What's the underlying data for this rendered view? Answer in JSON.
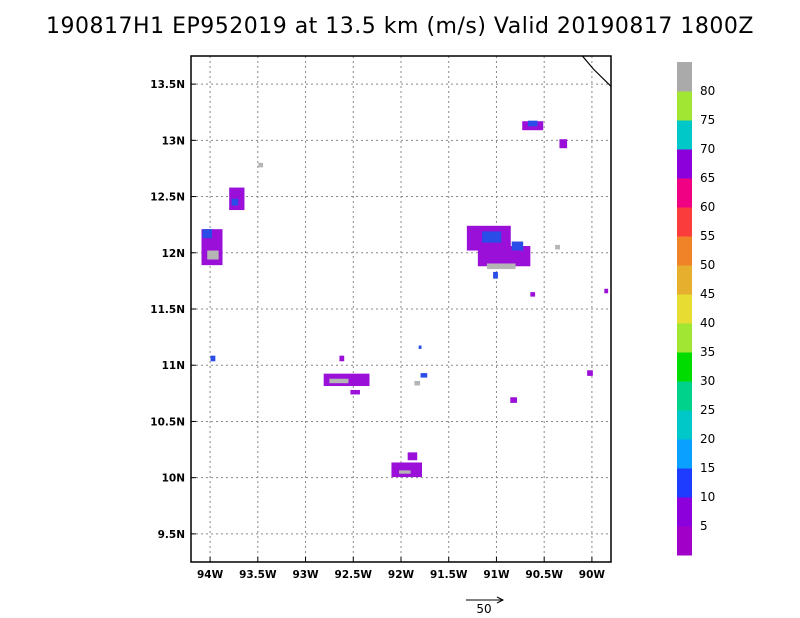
{
  "title": "190817H1 EP952019 at 13.5 km (m/s) Valid 20190817 1800Z",
  "map": {
    "lon_range": [
      -94.2,
      -89.8
    ],
    "lat_range": [
      9.25,
      13.75
    ],
    "lon_ticks": [
      {
        "value": -94.0,
        "label": "94W"
      },
      {
        "value": -93.5,
        "label": "93.5W"
      },
      {
        "value": -93.0,
        "label": "93W"
      },
      {
        "value": -92.5,
        "label": "92.5W"
      },
      {
        "value": -92.0,
        "label": "92W"
      },
      {
        "value": -91.5,
        "label": "91.5W"
      },
      {
        "value": -91.0,
        "label": "91W"
      },
      {
        "value": -90.5,
        "label": "90.5W"
      },
      {
        "value": -90.0,
        "label": "90W"
      }
    ],
    "lat_ticks": [
      {
        "value": 13.5,
        "label": "13.5N"
      },
      {
        "value": 13.0,
        "label": "13N"
      },
      {
        "value": 12.5,
        "label": "12.5N"
      },
      {
        "value": 12.0,
        "label": "12N"
      },
      {
        "value": 11.5,
        "label": "11.5N"
      },
      {
        "value": 11.0,
        "label": "11N"
      },
      {
        "value": 10.5,
        "label": "10.5N"
      },
      {
        "value": 10.0,
        "label": "10N"
      },
      {
        "value": 9.5,
        "label": "9.5N"
      }
    ],
    "grid": true,
    "coastline": [
      [
        -90.1,
        13.75
      ],
      [
        -89.98,
        13.63
      ],
      [
        -89.8,
        13.48
      ]
    ],
    "echo_cells": [
      {
        "lon": -93.98,
        "lat": 12.05,
        "w": 0.22,
        "h": 0.32,
        "color": "#9a10d8"
      },
      {
        "lon": -94.03,
        "lat": 12.17,
        "w": 0.1,
        "h": 0.08,
        "color": "#2a4de8"
      },
      {
        "lon": -93.97,
        "lat": 11.98,
        "w": 0.12,
        "h": 0.08,
        "color": "#b5b5b5"
      },
      {
        "lon": -93.72,
        "lat": 12.48,
        "w": 0.16,
        "h": 0.2,
        "color": "#9a10d8"
      },
      {
        "lon": -93.74,
        "lat": 12.45,
        "w": 0.07,
        "h": 0.06,
        "color": "#2a4de8"
      },
      {
        "lon": -93.47,
        "lat": 12.78,
        "w": 0.05,
        "h": 0.04,
        "color": "#b5b5b5"
      },
      {
        "lon": -93.97,
        "lat": 11.06,
        "w": 0.05,
        "h": 0.05,
        "color": "#2a4de8"
      },
      {
        "lon": -91.08,
        "lat": 12.13,
        "w": 0.46,
        "h": 0.22,
        "color": "#9a10d8"
      },
      {
        "lon": -90.92,
        "lat": 11.97,
        "w": 0.55,
        "h": 0.18,
        "color": "#9a10d8"
      },
      {
        "lon": -91.05,
        "lat": 12.14,
        "w": 0.2,
        "h": 0.1,
        "color": "#2a4de8"
      },
      {
        "lon": -90.78,
        "lat": 12.06,
        "w": 0.12,
        "h": 0.08,
        "color": "#2a4de8"
      },
      {
        "lon": -90.95,
        "lat": 11.88,
        "w": 0.3,
        "h": 0.05,
        "color": "#b5b5b5"
      },
      {
        "lon": -91.01,
        "lat": 11.8,
        "w": 0.05,
        "h": 0.06,
        "color": "#2a4de8"
      },
      {
        "lon": -90.62,
        "lat": 13.13,
        "w": 0.22,
        "h": 0.08,
        "color": "#9a10d8"
      },
      {
        "lon": -90.62,
        "lat": 13.15,
        "w": 0.1,
        "h": 0.05,
        "color": "#2a4de8"
      },
      {
        "lon": -90.3,
        "lat": 12.97,
        "w": 0.08,
        "h": 0.08,
        "color": "#9a10d8"
      },
      {
        "lon": -90.62,
        "lat": 11.63,
        "w": 0.05,
        "h": 0.04,
        "color": "#9a10d8"
      },
      {
        "lon": -90.36,
        "lat": 12.05,
        "w": 0.05,
        "h": 0.04,
        "color": "#b5b5b5"
      },
      {
        "lon": -89.85,
        "lat": 11.66,
        "w": 0.04,
        "h": 0.04,
        "color": "#9a10d8"
      },
      {
        "lon": -92.57,
        "lat": 10.87,
        "w": 0.48,
        "h": 0.11,
        "color": "#9a10d8"
      },
      {
        "lon": -92.62,
        "lat": 11.06,
        "w": 0.05,
        "h": 0.05,
        "color": "#9a10d8"
      },
      {
        "lon": -92.48,
        "lat": 10.76,
        "w": 0.1,
        "h": 0.04,
        "color": "#9a10d8"
      },
      {
        "lon": -92.65,
        "lat": 10.86,
        "w": 0.2,
        "h": 0.04,
        "color": "#b5b5b5"
      },
      {
        "lon": -91.76,
        "lat": 10.91,
        "w": 0.07,
        "h": 0.04,
        "color": "#2a4de8"
      },
      {
        "lon": -91.83,
        "lat": 10.84,
        "w": 0.06,
        "h": 0.04,
        "color": "#b5b5b5"
      },
      {
        "lon": -91.8,
        "lat": 11.16,
        "w": 0.03,
        "h": 0.03,
        "color": "#2a4de8"
      },
      {
        "lon": -90.82,
        "lat": 10.69,
        "w": 0.07,
        "h": 0.05,
        "color": "#9a10d8"
      },
      {
        "lon": -90.02,
        "lat": 10.93,
        "w": 0.06,
        "h": 0.05,
        "color": "#9a10d8"
      },
      {
        "lon": -91.94,
        "lat": 10.07,
        "w": 0.32,
        "h": 0.13,
        "color": "#9a10d8"
      },
      {
        "lon": -91.88,
        "lat": 10.19,
        "w": 0.1,
        "h": 0.07,
        "color": "#9a10d8"
      },
      {
        "lon": -91.96,
        "lat": 10.05,
        "w": 0.12,
        "h": 0.03,
        "color": "#b5b5b5"
      }
    ]
  },
  "colorbar": {
    "bands": [
      "#a000c8",
      "#8c00dc",
      "#1e3cff",
      "#0aa0ff",
      "#00c8c8",
      "#00d28c",
      "#00dc00",
      "#a0e632",
      "#e6dc32",
      "#e6af2d",
      "#f08228",
      "#fa3c3c",
      "#f00082",
      "#8c00dc",
      "#00c8c8",
      "#a0e632",
      "#aaaaaa"
    ],
    "labels": [
      "5",
      "10",
      "15",
      "20",
      "25",
      "30",
      "35",
      "40",
      "45",
      "50",
      "55",
      "60",
      "65",
      "70",
      "75",
      "80"
    ]
  },
  "vector_legend": {
    "label": "50"
  }
}
